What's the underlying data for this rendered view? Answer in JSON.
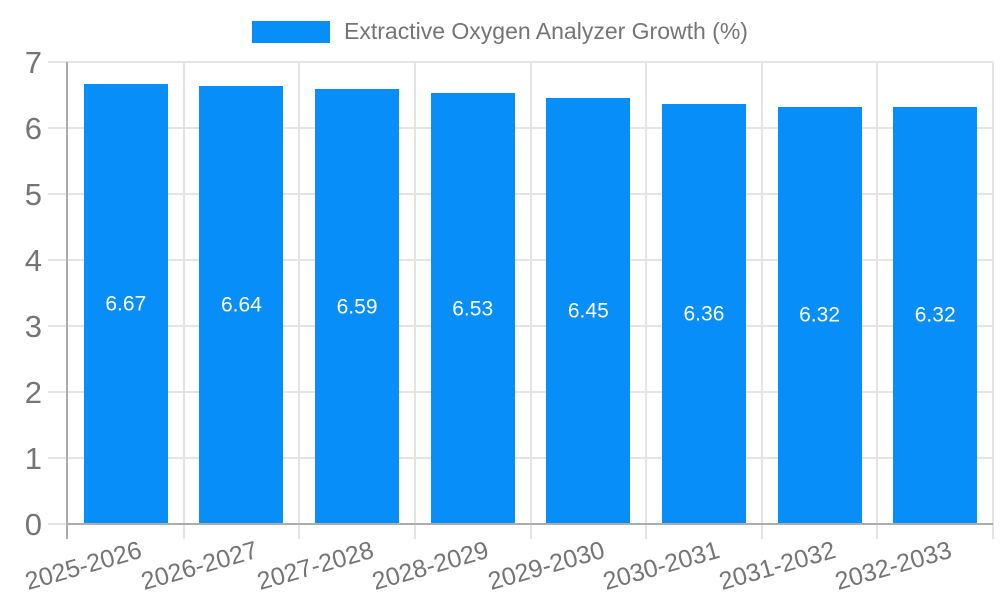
{
  "legend": {
    "label": "Extractive Oxygen Analyzer Growth (%)"
  },
  "chart_data": {
    "type": "bar",
    "title": "Extractive Oxygen Analyzer Growth (%)",
    "categories": [
      "2025-2026",
      "2026-2027",
      "2027-2028",
      "2028-2029",
      "2029-2030",
      "2030-2031",
      "2031-2032",
      "2032-2033"
    ],
    "values": [
      6.67,
      6.64,
      6.59,
      6.53,
      6.45,
      6.36,
      6.32,
      6.32
    ],
    "data_labels": [
      "6.67",
      "6.64",
      "6.59",
      "6.53",
      "6.45",
      "6.36",
      "6.32",
      "6.32"
    ],
    "xlabel": "",
    "ylabel": "",
    "ylim": [
      0,
      7
    ],
    "yticks": [
      0,
      1,
      2,
      3,
      4,
      5,
      6,
      7
    ],
    "grid": true,
    "legend_position": "top",
    "colors": {
      "bar": "#088EF8",
      "data_label": "#FFFFFF",
      "tick_text": "#757575",
      "grid": "#E4E4E4",
      "axis": "#ACACAC",
      "background": "#FFFFFF"
    }
  }
}
